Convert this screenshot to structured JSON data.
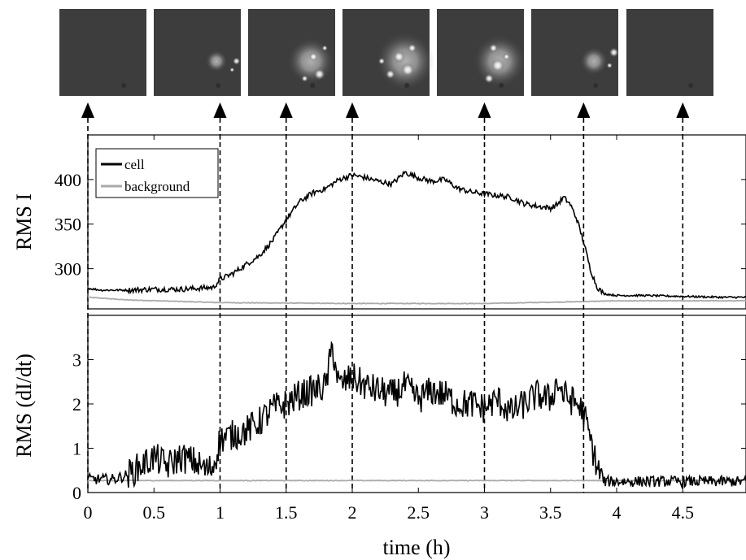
{
  "chart_data": [
    {
      "type": "image_strip",
      "frame_times_h": [
        0,
        1,
        1.5,
        2,
        3,
        3.75,
        4.5
      ],
      "frame_brightness": [
        0.0,
        0.35,
        0.75,
        0.95,
        0.85,
        0.45,
        0.0
      ]
    },
    {
      "type": "line",
      "ylabel": "RMS I",
      "xlim": [
        0,
        5
      ],
      "ylim": [
        255,
        450
      ],
      "yticks": [
        300,
        350,
        400
      ],
      "vlines": [
        0,
        1,
        1.5,
        2,
        3,
        3.75,
        4.5
      ],
      "legend": {
        "position": "top-left",
        "entries": [
          "cell",
          "background"
        ]
      },
      "series": [
        {
          "name": "cell",
          "color": "#000000",
          "x": [
            0,
            0.1,
            0.3,
            0.5,
            0.7,
            0.95,
            1.0,
            1.1,
            1.2,
            1.3,
            1.4,
            1.5,
            1.6,
            1.7,
            1.8,
            1.9,
            2.0,
            2.1,
            2.2,
            2.3,
            2.4,
            2.5,
            2.6,
            2.7,
            2.8,
            2.9,
            3.0,
            3.1,
            3.2,
            3.3,
            3.4,
            3.5,
            3.55,
            3.6,
            3.65,
            3.7,
            3.75,
            3.8,
            3.85,
            3.9,
            4.0,
            4.2,
            4.5,
            4.8,
            5.0
          ],
          "y": [
            278,
            276,
            276,
            277,
            277,
            279,
            288,
            295,
            305,
            315,
            332,
            355,
            375,
            385,
            390,
            400,
            405,
            402,
            398,
            395,
            408,
            402,
            398,
            400,
            390,
            386,
            384,
            382,
            380,
            373,
            370,
            368,
            372,
            380,
            372,
            355,
            330,
            300,
            280,
            272,
            270,
            270,
            269,
            268,
            268
          ]
        },
        {
          "name": "background",
          "color": "#aaaaaa",
          "x": [
            0,
            0.3,
            1.0,
            2.0,
            3.0,
            3.7,
            4.0,
            5.0
          ],
          "y": [
            268,
            265,
            262,
            261,
            261,
            263,
            264,
            264
          ]
        }
      ]
    },
    {
      "type": "line",
      "ylabel": "RMS (dI/dt)",
      "xlabel": "time (h)",
      "xlim": [
        0,
        5
      ],
      "ylim": [
        0,
        4
      ],
      "yticks": [
        0,
        1,
        2,
        3
      ],
      "xticks": [
        0,
        0.5,
        1,
        1.5,
        2,
        2.5,
        3,
        3.5,
        4,
        4.5
      ],
      "xtick_labels": [
        "0",
        "0.5",
        "1",
        "1.5",
        "2",
        "2.5",
        "3",
        "3.5",
        "4",
        "4.5"
      ],
      "vlines": [
        0,
        1,
        1.5,
        2,
        3,
        3.75,
        4.5
      ],
      "series": [
        {
          "name": "cell",
          "color": "#000000",
          "x": [
            0,
            0.2,
            0.3,
            0.4,
            0.5,
            0.6,
            0.7,
            0.8,
            0.9,
            0.95,
            1.0,
            1.1,
            1.2,
            1.3,
            1.4,
            1.5,
            1.6,
            1.7,
            1.8,
            1.85,
            1.9,
            2.0,
            2.1,
            2.2,
            2.3,
            2.4,
            2.5,
            2.6,
            2.7,
            2.8,
            2.9,
            3.0,
            3.1,
            3.2,
            3.3,
            3.4,
            3.5,
            3.55,
            3.6,
            3.7,
            3.75,
            3.8,
            3.85,
            3.9,
            4.0,
            4.5,
            5.0
          ],
          "y": [
            0.3,
            0.3,
            0.4,
            0.6,
            0.8,
            0.6,
            0.8,
            0.7,
            0.5,
            0.6,
            1.2,
            1.3,
            1.4,
            1.6,
            1.9,
            2.0,
            2.2,
            2.3,
            2.4,
            3.3,
            2.4,
            2.6,
            2.4,
            2.3,
            2.2,
            2.4,
            2.1,
            2.3,
            2.2,
            2.0,
            2.0,
            1.9,
            2.1,
            1.8,
            2.0,
            2.2,
            2.1,
            2.5,
            2.2,
            2.0,
            1.8,
            1.2,
            0.6,
            0.25,
            0.25,
            0.25,
            0.25
          ]
        },
        {
          "name": "background",
          "color": "#aaaaaa",
          "x": [
            0,
            5.0
          ],
          "y": [
            0.27,
            0.27
          ]
        }
      ]
    }
  ]
}
